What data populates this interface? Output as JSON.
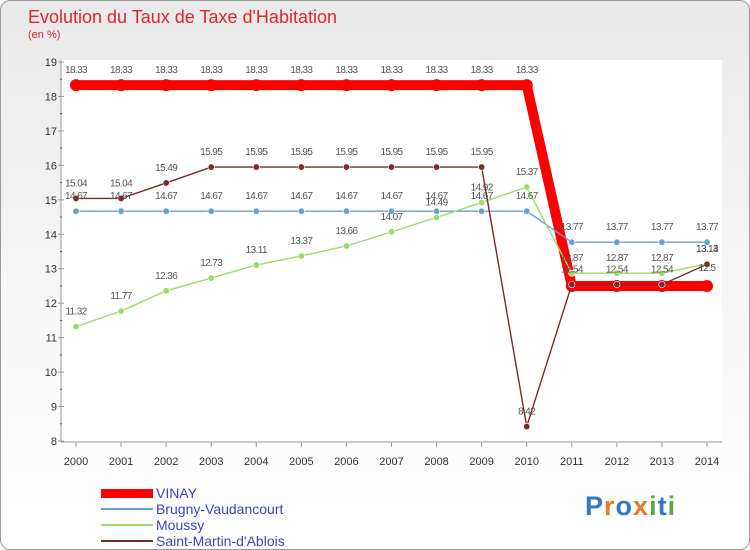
{
  "title": "Evolution du Taux de Taxe d'Habitation",
  "subtitle": "(en %)",
  "logo": {
    "text": "Proxiti",
    "colors": [
      "#2e7bc4",
      "#e8782a",
      "#2e7bc4",
      "#e8782a",
      "#5aab3c",
      "#2e7bc4",
      "#5aab3c"
    ]
  },
  "chart_data": {
    "type": "line",
    "title": "Evolution du Taux de Taxe d'Habitation",
    "ylabel": "(en %)",
    "xlabel": "",
    "x": [
      "2000",
      "2001",
      "2002",
      "2003",
      "2004",
      "2005",
      "2006",
      "2007",
      "2008",
      "2009",
      "2010",
      "2011",
      "2012",
      "2013",
      "2014"
    ],
    "yticks": [
      "8",
      "9",
      "10",
      "11",
      "12",
      "13",
      "14",
      "15",
      "16",
      "17",
      "18",
      "19"
    ],
    "ylim": [
      8,
      19
    ],
    "grid": false,
    "legend_position": "bottom-left",
    "series": [
      {
        "name": "VINAY",
        "color": "#ff0000",
        "values": [
          18.33,
          18.33,
          18.33,
          18.33,
          18.33,
          18.33,
          18.33,
          18.33,
          18.33,
          18.33,
          18.33,
          12.5,
          12.5,
          12.5,
          12.5
        ],
        "labels": [
          "18.33",
          "18.33",
          "18.33",
          "18.33",
          "18.33",
          "18.33",
          "18.33",
          "18.33",
          "18.33",
          "18.33",
          "18.33",
          "",
          "",
          "",
          "12.5"
        ]
      },
      {
        "name": "Brugny-Vaudancourt",
        "color": "#6a9fd4",
        "values": [
          14.67,
          14.67,
          14.67,
          14.67,
          14.67,
          14.67,
          14.67,
          14.67,
          14.67,
          14.67,
          14.67,
          13.77,
          13.77,
          13.77,
          13.77
        ],
        "labels": [
          "14.67",
          "14.67",
          "14.67",
          "14.67",
          "14.67",
          "14.67",
          "14.67",
          "14.67",
          "14.67",
          "14.67",
          "14.67",
          "13.77",
          "13.77",
          "13.77",
          "13.77"
        ]
      },
      {
        "name": "Moussy",
        "color": "#99dd66",
        "values": [
          11.32,
          11.77,
          12.36,
          12.73,
          13.11,
          13.37,
          13.66,
          14.07,
          14.49,
          14.92,
          15.37,
          12.87,
          12.87,
          12.87,
          13.14
        ],
        "labels": [
          "11.32",
          "11.77",
          "12.36",
          "12.73",
          "13.11",
          "13.37",
          "13.66",
          "14.07",
          "14.49",
          "14.92",
          "15.37",
          "12.87",
          "12.87",
          "12.87",
          "13.14"
        ]
      },
      {
        "name": "Saint-Martin-d'Ablois",
        "color": "#7a2a2a",
        "values": [
          15.04,
          15.04,
          15.49,
          15.95,
          15.95,
          15.95,
          15.95,
          15.95,
          15.95,
          15.95,
          8.42,
          12.54,
          12.54,
          12.54,
          13.13
        ],
        "labels": [
          "15.04",
          "15.04",
          "15.49",
          "15.95",
          "15.95",
          "15.95",
          "15.95",
          "15.95",
          "15.95",
          "15.95",
          "8.42",
          "12.54",
          "12.54",
          "12.54",
          "13.13"
        ]
      }
    ]
  }
}
